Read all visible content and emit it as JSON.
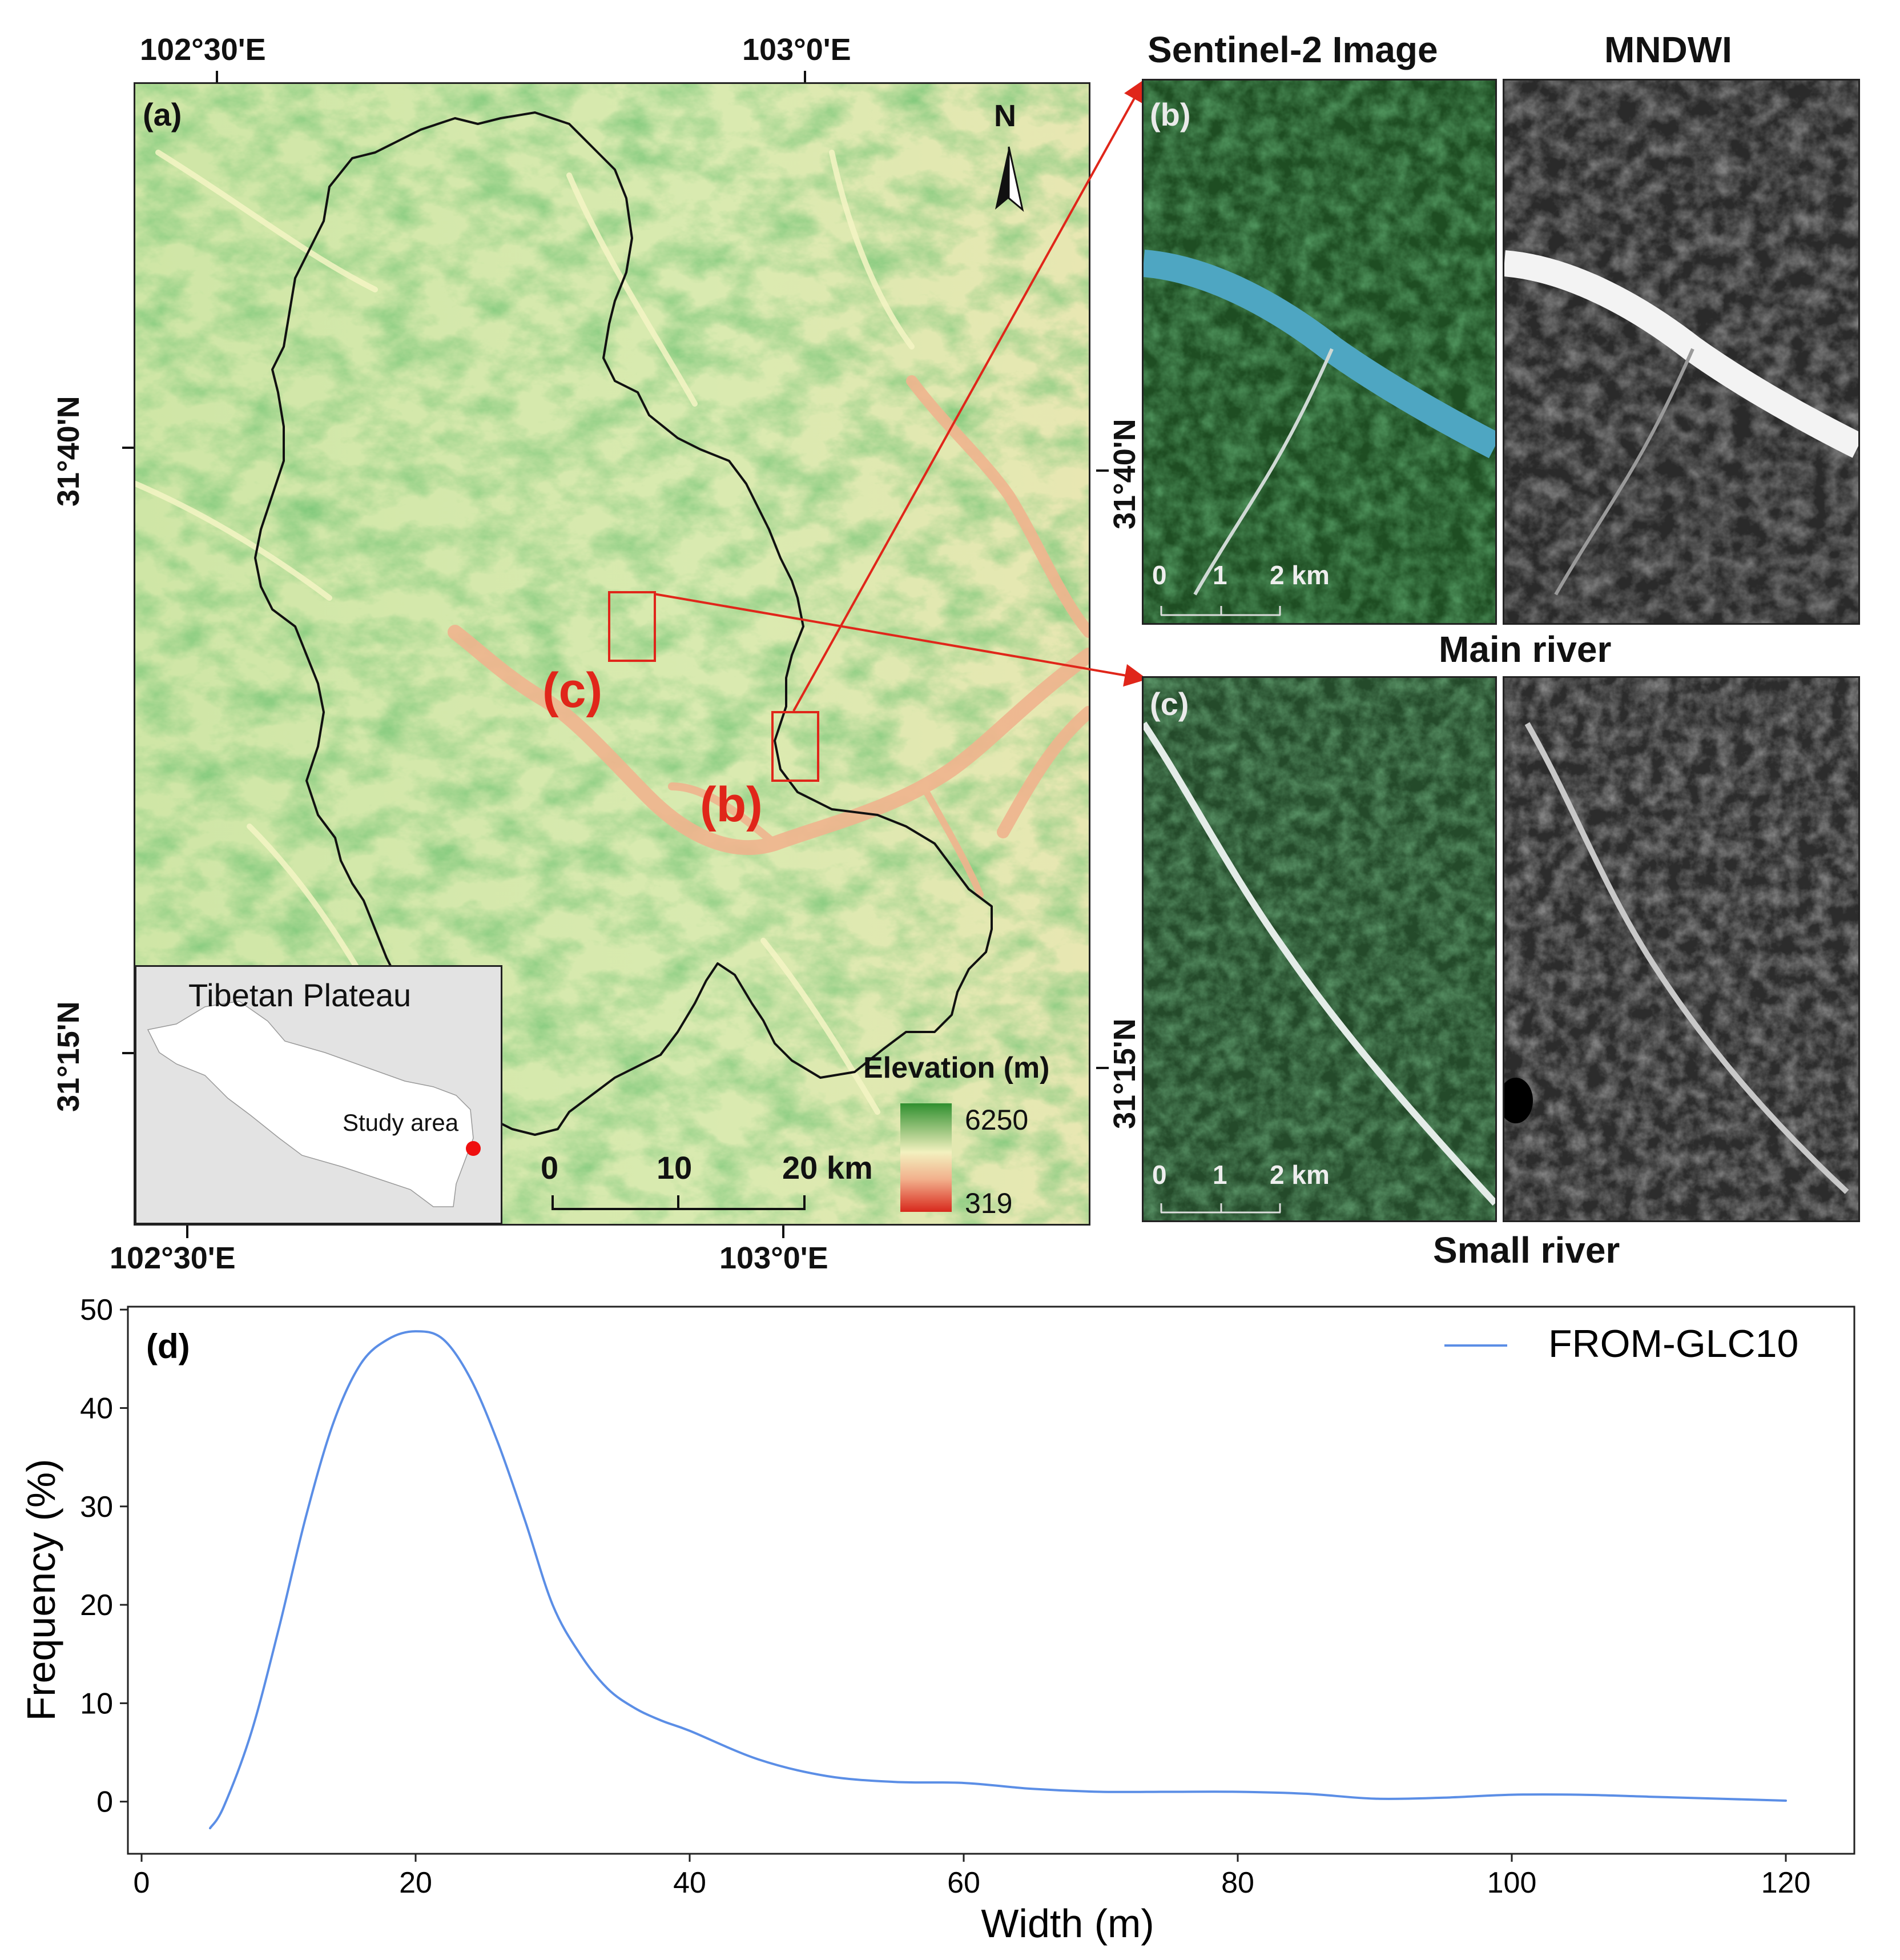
{
  "map_a": {
    "label": "(a)",
    "top_lon_ticks": [
      "102°30'E",
      "103°0'E"
    ],
    "bottom_lon_ticks": [
      "102°30'E",
      "103°0'E"
    ],
    "left_lat_ticks": [
      "31°40'N",
      "31°15'N"
    ],
    "north_arrow": "N",
    "box_b_label": "(b)",
    "box_c_label": "(c)",
    "legend_title": "Elevation (m)",
    "legend_max": "6250",
    "legend_min": "319",
    "scalebar": [
      "0",
      "10",
      "20 km"
    ],
    "inset": {
      "title": "Tibetan Plateau",
      "marker_label": "Study area"
    },
    "colors": {
      "high": "#2f8f2f",
      "mid": "#f3f1bf",
      "low": "#e2402a",
      "boundary": "#111111",
      "box": "#e0261a"
    }
  },
  "panels": {
    "col_titles": [
      "Sentinel-2 Image",
      "MNDWI"
    ],
    "right_lat_ticks": [
      "31°40'N",
      "31°15'N"
    ],
    "b": {
      "label": "(b)",
      "caption": "Main river",
      "scalebar": [
        "0",
        "1",
        "2 km"
      ]
    },
    "c": {
      "label": "(c)",
      "caption": "Small river",
      "scalebar": [
        "0",
        "1",
        "2 km"
      ]
    }
  },
  "chart_d": {
    "label": "(d)"
  },
  "chart_data": {
    "type": "line",
    "xlabel": "Width (m)",
    "ylabel": "Frequency (%)",
    "xlim": [
      -1,
      125
    ],
    "ylim": [
      -5.3,
      50.3
    ],
    "xticks": [
      0,
      20,
      40,
      60,
      80,
      100,
      120
    ],
    "yticks": [
      0,
      10,
      20,
      30,
      40,
      50
    ],
    "legend": "top-right",
    "grid": false,
    "series": [
      {
        "name": "FROM-GLC10",
        "color": "#5b8ee6",
        "x": [
          5,
          6,
          8,
          10,
          12,
          14,
          16,
          18,
          20,
          22,
          24,
          26,
          28,
          30,
          32,
          34,
          36,
          38,
          40,
          45,
          50,
          55,
          60,
          65,
          70,
          75,
          80,
          85,
          90,
          95,
          100,
          105,
          110,
          115,
          120
        ],
        "y": [
          -2.7,
          -0.5,
          7,
          17.5,
          29,
          38.5,
          44.5,
          47,
          47.8,
          47,
          43,
          36.5,
          28.5,
          20,
          15,
          11.5,
          9.5,
          8.2,
          7.2,
          4.3,
          2.6,
          2,
          1.9,
          1.3,
          1,
          1,
          1,
          0.8,
          0.3,
          0.4,
          0.7,
          0.7,
          0.5,
          0.3,
          0.1
        ]
      }
    ]
  }
}
